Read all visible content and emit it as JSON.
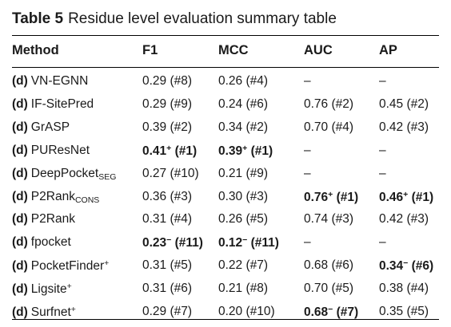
{
  "caption": {
    "label": "Table 5",
    "text": "Residue level evaluation summary table"
  },
  "headers": {
    "method": "Method",
    "f1": "F1",
    "mcc": "MCC",
    "auc": "AUC",
    "ap": "AP"
  },
  "rows": [
    {
      "prefix": "(d)",
      "name": "VN-EGNN",
      "sub": "",
      "sup": "",
      "f1": {
        "v": "0.29 (#8)",
        "bold": false,
        "sup": ""
      },
      "mcc": {
        "v": "0.26 (#4)",
        "bold": false,
        "sup": ""
      },
      "auc": {
        "v": "–",
        "bold": false,
        "sup": ""
      },
      "ap": {
        "v": "–",
        "bold": false,
        "sup": ""
      }
    },
    {
      "prefix": "(d)",
      "name": "IF-SitePred",
      "sub": "",
      "sup": "",
      "f1": {
        "v": "0.29 (#9)",
        "bold": false,
        "sup": ""
      },
      "mcc": {
        "v": "0.24 (#6)",
        "bold": false,
        "sup": ""
      },
      "auc": {
        "v": "0.76 (#2)",
        "bold": false,
        "sup": ""
      },
      "ap": {
        "v": "0.45 (#2)",
        "bold": false,
        "sup": ""
      }
    },
    {
      "prefix": "(d)",
      "name": "GrASP",
      "sub": "",
      "sup": "",
      "f1": {
        "v": "0.39 (#2)",
        "bold": false,
        "sup": ""
      },
      "mcc": {
        "v": "0.34 (#2)",
        "bold": false,
        "sup": ""
      },
      "auc": {
        "v": "0.70 (#4)",
        "bold": false,
        "sup": ""
      },
      "ap": {
        "v": "0.42 (#3)",
        "bold": false,
        "sup": ""
      }
    },
    {
      "prefix": "(d)",
      "name": "PUResNet",
      "sub": "",
      "sup": "",
      "f1": {
        "v": "0.41",
        "bold": true,
        "sup": "+",
        "rank": "(#1)"
      },
      "mcc": {
        "v": "0.39",
        "bold": true,
        "sup": "+",
        "rank": "(#1)"
      },
      "auc": {
        "v": "–",
        "bold": false,
        "sup": ""
      },
      "ap": {
        "v": "–",
        "bold": false,
        "sup": ""
      }
    },
    {
      "prefix": "(d)",
      "name": "DeepPocket",
      "sub": "SEG",
      "sup": "",
      "f1": {
        "v": "0.27 (#10)",
        "bold": false,
        "sup": ""
      },
      "mcc": {
        "v": "0.21 (#9)",
        "bold": false,
        "sup": ""
      },
      "auc": {
        "v": "–",
        "bold": false,
        "sup": ""
      },
      "ap": {
        "v": "–",
        "bold": false,
        "sup": ""
      }
    },
    {
      "prefix": "(d)",
      "name": "P2Rank",
      "sub": "CONS",
      "sup": "",
      "f1": {
        "v": "0.36 (#3)",
        "bold": false,
        "sup": ""
      },
      "mcc": {
        "v": "0.30 (#3)",
        "bold": false,
        "sup": ""
      },
      "auc": {
        "v": "0.76",
        "bold": true,
        "sup": "+",
        "rank": "(#1)"
      },
      "ap": {
        "v": "0.46",
        "bold": true,
        "sup": "+",
        "rank": "(#1)"
      }
    },
    {
      "prefix": "(d)",
      "name": "P2Rank",
      "sub": "",
      "sup": "",
      "f1": {
        "v": "0.31 (#4)",
        "bold": false,
        "sup": ""
      },
      "mcc": {
        "v": "0.26 (#5)",
        "bold": false,
        "sup": ""
      },
      "auc": {
        "v": "0.74 (#3)",
        "bold": false,
        "sup": ""
      },
      "ap": {
        "v": "0.42 (#3)",
        "bold": false,
        "sup": ""
      }
    },
    {
      "prefix": "(d)",
      "name": "fpocket",
      "sub": "",
      "sup": "",
      "f1": {
        "v": "0.23",
        "bold": true,
        "sup": "−",
        "rank": "(#11)"
      },
      "mcc": {
        "v": "0.12",
        "bold": true,
        "sup": "−",
        "rank": "(#11)"
      },
      "auc": {
        "v": "–",
        "bold": false,
        "sup": ""
      },
      "ap": {
        "v": "–",
        "bold": false,
        "sup": ""
      }
    },
    {
      "prefix": "(d)",
      "name": "PocketFinder",
      "sub": "",
      "sup": "+",
      "f1": {
        "v": "0.31 (#5)",
        "bold": false,
        "sup": ""
      },
      "mcc": {
        "v": "0.22 (#7)",
        "bold": false,
        "sup": ""
      },
      "auc": {
        "v": "0.68 (#6)",
        "bold": false,
        "sup": ""
      },
      "ap": {
        "v": "0.34",
        "bold": true,
        "sup": "−",
        "rank": "(#6)"
      }
    },
    {
      "prefix": "(d)",
      "name": "Ligsite",
      "sub": "",
      "sup": "+",
      "f1": {
        "v": "0.31 (#6)",
        "bold": false,
        "sup": ""
      },
      "mcc": {
        "v": "0.21 (#8)",
        "bold": false,
        "sup": ""
      },
      "auc": {
        "v": "0.70 (#5)",
        "bold": false,
        "sup": ""
      },
      "ap": {
        "v": "0.38 (#4)",
        "bold": false,
        "sup": ""
      }
    },
    {
      "prefix": "(d)",
      "name": "Surfnet",
      "sub": "",
      "sup": "+",
      "f1": {
        "v": "0.29 (#7)",
        "bold": false,
        "sup": ""
      },
      "mcc": {
        "v": "0.20 (#10)",
        "bold": false,
        "sup": ""
      },
      "auc": {
        "v": "0.68",
        "bold": true,
        "sup": "−",
        "rank": "(#7)"
      },
      "ap": {
        "v": "0.35 (#5)",
        "bold": false,
        "sup": ""
      }
    }
  ]
}
